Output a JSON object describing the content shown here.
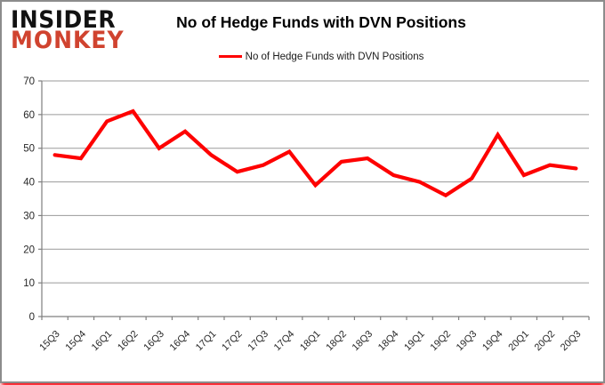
{
  "brand": {
    "line1": "INSIDER",
    "line2": "MONKEY",
    "accent_color": "#d0432f"
  },
  "header": {
    "title": "No of Hedge Funds with DVN Positions"
  },
  "legend": {
    "label": "No of Hedge Funds with DVN Positions",
    "line_color": "#fe0000"
  },
  "chart_data": {
    "type": "line",
    "title": "No of Hedge Funds with DVN Positions",
    "categories": [
      "15Q3",
      "15Q4",
      "16Q1",
      "16Q2",
      "16Q3",
      "16Q4",
      "17Q1",
      "17Q2",
      "17Q3",
      "17Q4",
      "18Q1",
      "18Q2",
      "18Q3",
      "18Q4",
      "19Q1",
      "19Q2",
      "19Q3",
      "19Q4",
      "20Q1",
      "20Q2",
      "20Q3"
    ],
    "series": [
      {
        "name": "No of Hedge Funds with DVN Positions",
        "color": "#fe0000",
        "values": [
          48,
          47,
          58,
          61,
          50,
          55,
          48,
          43,
          45,
          49,
          39,
          46,
          47,
          42,
          40,
          36,
          41,
          54,
          42,
          45,
          44
        ]
      }
    ],
    "xlabel": "",
    "ylabel": "",
    "ylim": [
      0,
      70
    ],
    "yticks": [
      0,
      10,
      20,
      30,
      40,
      50,
      60,
      70
    ],
    "grid": true,
    "legend_position": "top-center",
    "gridline_color": "#9a9a9a",
    "axis_color": "#7f7f7f",
    "tick_label_color": "#262626"
  }
}
